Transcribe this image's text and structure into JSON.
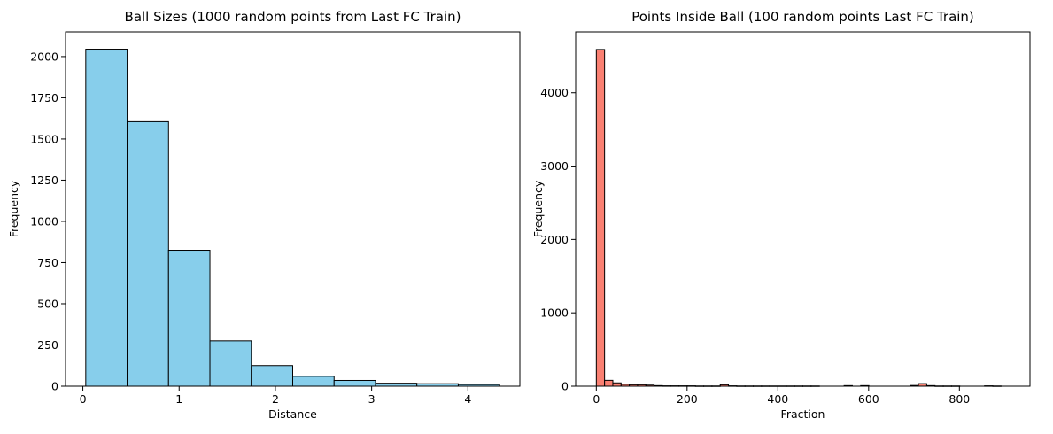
{
  "chart_data": [
    {
      "type": "bar",
      "title": "Ball Sizes (1000 random points from Last FC Train)",
      "xlabel": "Distance",
      "ylabel": "Frequency",
      "xlim": [
        -0.18,
        4.54
      ],
      "ylim": [
        0,
        2150
      ],
      "xticks": [
        0,
        1,
        2,
        3,
        4
      ],
      "yticks": [
        0,
        250,
        500,
        750,
        1000,
        1250,
        1500,
        1750,
        2000
      ],
      "bar_color": "#87ceeb",
      "edge_color": "#000000",
      "bins": [
        {
          "x0": 0.03,
          "x1": 0.46,
          "value": 2045
        },
        {
          "x0": 0.46,
          "x1": 0.89,
          "value": 1605
        },
        {
          "x0": 0.89,
          "x1": 1.32,
          "value": 825
        },
        {
          "x0": 1.32,
          "x1": 1.75,
          "value": 275
        },
        {
          "x0": 1.75,
          "x1": 2.18,
          "value": 125
        },
        {
          "x0": 2.18,
          "x1": 2.61,
          "value": 60
        },
        {
          "x0": 2.61,
          "x1": 3.04,
          "value": 35
        },
        {
          "x0": 3.04,
          "x1": 3.47,
          "value": 18
        },
        {
          "x0": 3.47,
          "x1": 3.9,
          "value": 15
        },
        {
          "x0": 3.9,
          "x1": 4.33,
          "value": 10
        }
      ]
    },
    {
      "type": "bar",
      "title": "Points Inside Ball (100 random points Last FC Train)",
      "xlabel": "Fraction",
      "ylabel": "Frequency",
      "xlim": [
        -45.5,
        955.5
      ],
      "ylim": [
        0,
        4830
      ],
      "xticks": [
        0,
        200,
        400,
        600,
        800
      ],
      "yticks": [
        0,
        1000,
        2000,
        3000,
        4000
      ],
      "bar_color": "#fa8072",
      "edge_color": "#000000",
      "bin_start": 0,
      "bin_width": 18.2,
      "values": [
        4590,
        80,
        45,
        25,
        20,
        20,
        15,
        8,
        5,
        5,
        5,
        5,
        3,
        3,
        3,
        20,
        5,
        3,
        3,
        3,
        3,
        3,
        3,
        3,
        3,
        3,
        3,
        0,
        0,
        0,
        8,
        0,
        8,
        0,
        0,
        0,
        0,
        0,
        10,
        35,
        8,
        3,
        3,
        3,
        0,
        0,
        0,
        5,
        3,
        0
      ]
    }
  ]
}
